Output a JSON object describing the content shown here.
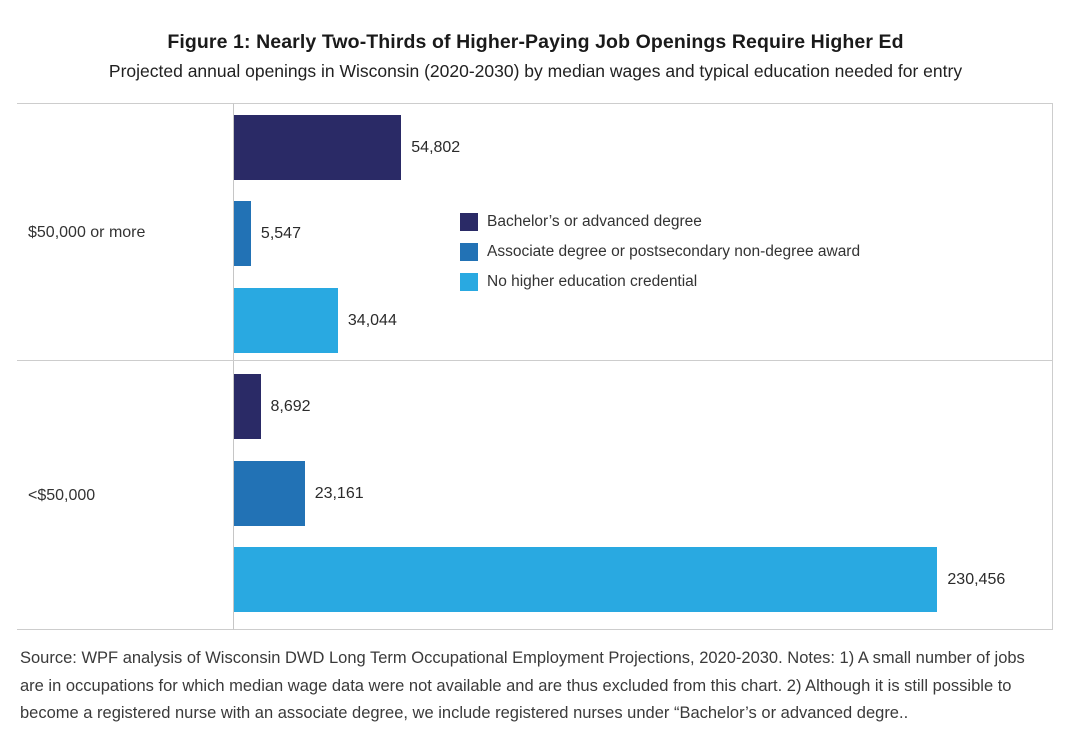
{
  "header": {
    "title": "Figure 1: Nearly Two-Thirds of Higher-Paying Job Openings Require Higher Ed",
    "subtitle": "Projected annual openings in Wisconsin (2020-2030) by median wages and typical education needed for entry"
  },
  "chart_data": {
    "type": "bar",
    "orientation": "horizontal",
    "title": "Figure 1: Nearly Two-Thirds of Higher-Paying Job Openings Require Higher Ed",
    "subtitle": "Projected annual openings in Wisconsin (2020-2030) by median wages and typical education needed for entry",
    "categories": [
      "$50,000 or more",
      "<$50,000"
    ],
    "series": [
      {
        "name": "Bachelor’s or advanced degree",
        "color": "#2a2a66",
        "values": [
          54802,
          8692
        ],
        "labels": [
          "54,802",
          "8,692"
        ]
      },
      {
        "name": "Associate degree or postsecondary non-degree award",
        "color": "#2272b5",
        "values": [
          5547,
          23161
        ],
        "labels": [
          "5,547",
          "23,161"
        ]
      },
      {
        "name": "No higher education credential",
        "color": "#29a9e1",
        "values": [
          34044,
          230456
        ],
        "labels": [
          "34,044",
          "230,456"
        ]
      }
    ],
    "xlim": [
      0,
      268000
    ],
    "grid": false,
    "value_labels": "outside-end",
    "legend_position": "inside-upper-middle",
    "frame_color": "#cdcdcd"
  },
  "footer": {
    "source_note": "Source: WPF analysis of Wisconsin DWD Long Term Occupational Employment Projections, 2020-2030. Notes: 1) A small number of jobs are in occupations for which median wage data were not available and are thus excluded from this chart. 2) Although it is still possible to become a registered nurse with an associate degree, we include registered nurses under “Bachelor’s or advanced degre.."
  }
}
